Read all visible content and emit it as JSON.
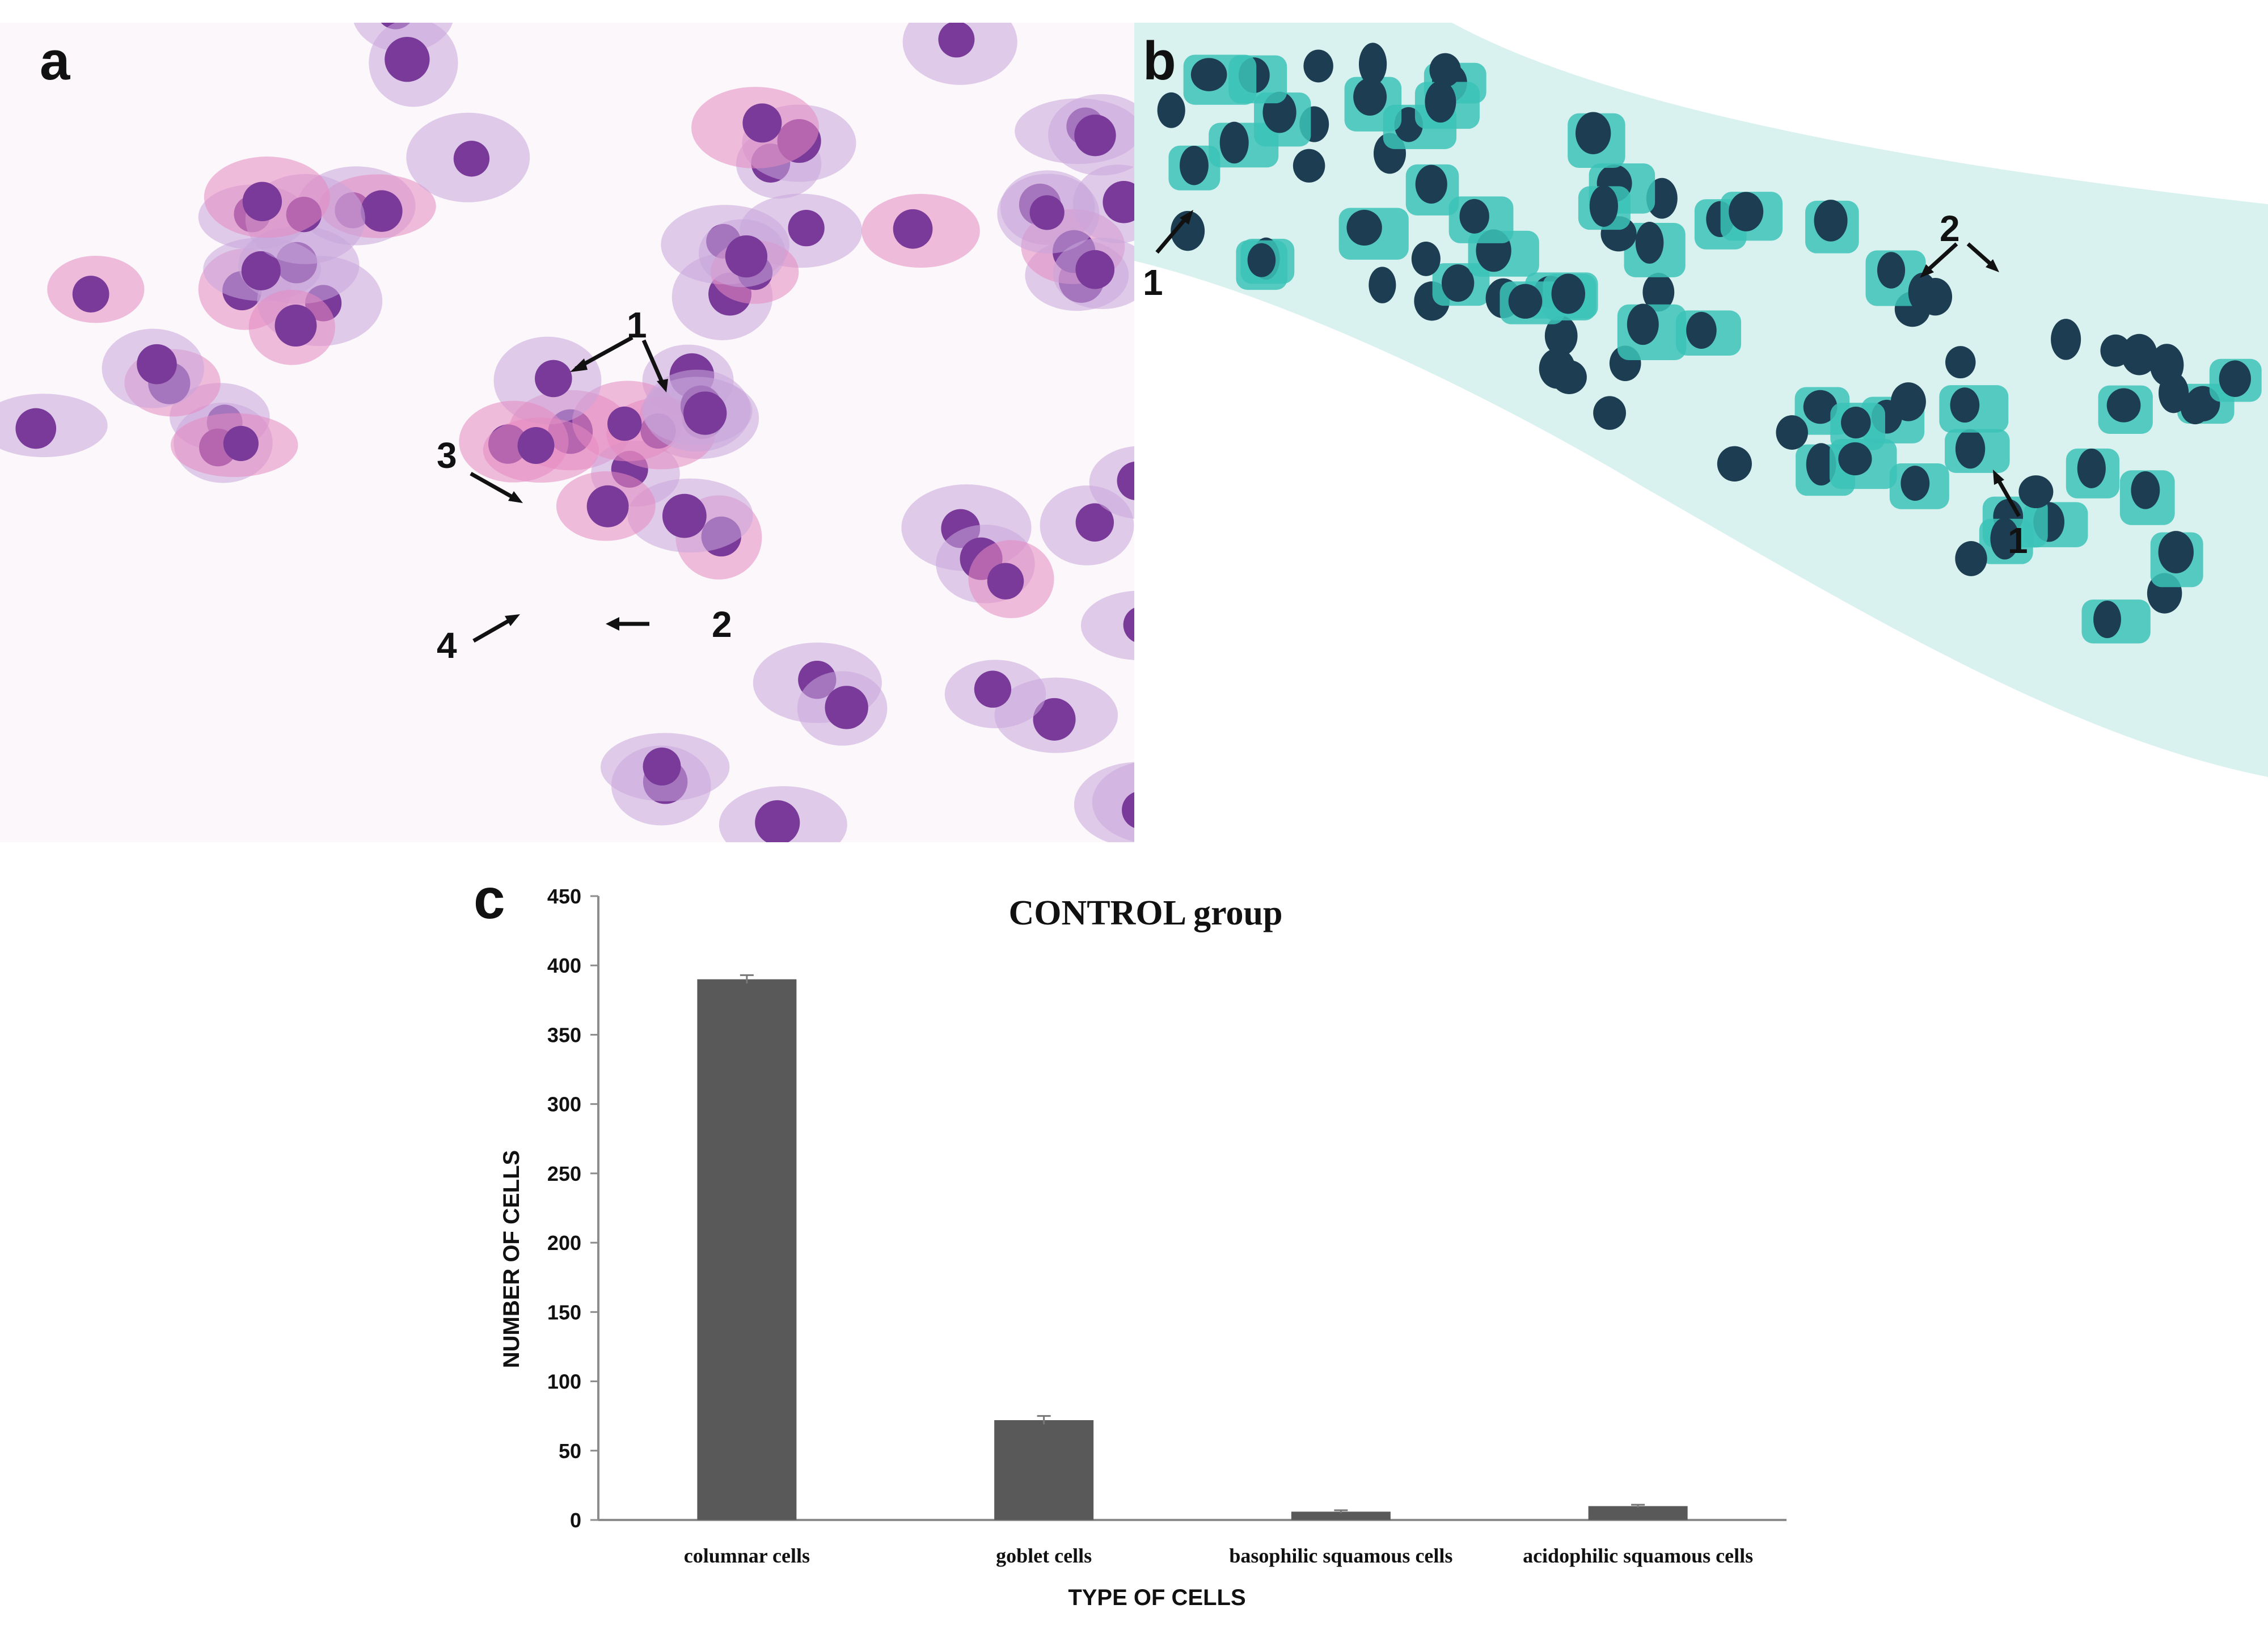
{
  "panels": {
    "a": {
      "label": "a",
      "annotations": [
        "1",
        "2",
        "3",
        "4"
      ]
    },
    "b": {
      "label": "b",
      "annotations": [
        "1",
        "2",
        "1"
      ]
    },
    "c": {
      "label": "c"
    }
  },
  "colors": {
    "bar": "#595959",
    "axis": "#8c8c8c",
    "papBackground": "#f7eef7",
    "papNucleus": "#7a3a9a",
    "papCytoplasm": "#c9a5da",
    "papPink": "#e58bc1",
    "massonBackground": "#ffffff",
    "massonNucleus": "#1d3e52",
    "massonCytoplasm": "#3cc3b8"
  },
  "chart_data": {
    "type": "bar",
    "title": "CONTROL group",
    "xlabel": "TYPE OF CELLS",
    "ylabel": "NUMBER OF CELLS",
    "categories": [
      "columnar cells",
      "goblet cells",
      "basophilic squamous cells",
      "acidophilic squamous cells"
    ],
    "values": [
      390,
      72,
      6,
      10
    ],
    "errors": [
      3,
      3,
      1,
      1
    ],
    "ylim": [
      0,
      450
    ],
    "yticks": [
      0,
      50,
      100,
      150,
      200,
      250,
      300,
      350,
      400,
      450
    ],
    "grid": false,
    "legend": "none"
  }
}
